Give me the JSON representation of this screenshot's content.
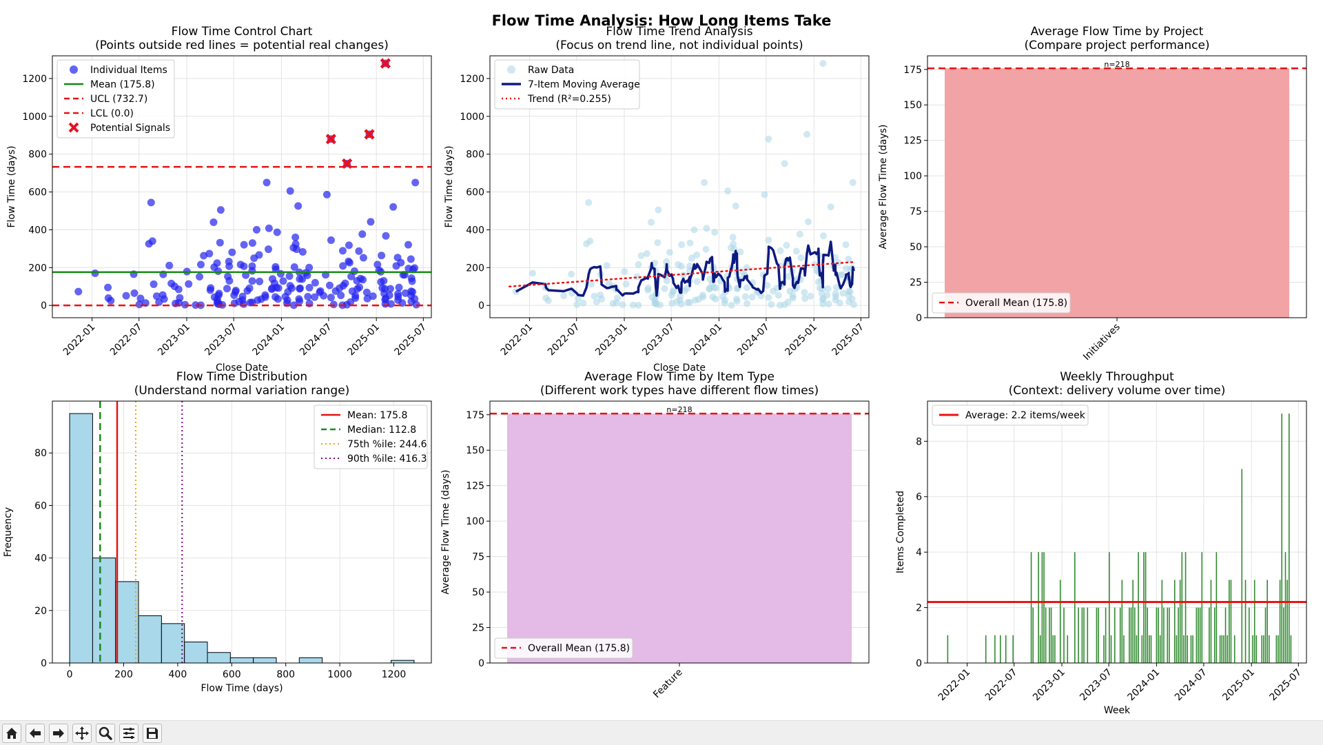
{
  "suptitle": "Flow Time Analysis: How Long Items Take",
  "colors": {
    "scatter": "#2222ee",
    "signal": "#e8101e",
    "mean_line": "#138a13",
    "limit_line": "#e81010",
    "moving_avg": "#0d1a80",
    "raw": "#a9d6e6",
    "trend": "#ee1111",
    "project_bar": "#f2a3a6",
    "type_bar": "#e3bbe6",
    "hist_bar": "#a8d8ea",
    "median": "#1a8a1a",
    "p75": "#f0a400",
    "p90": "#800080",
    "throughput_bar": "#2f8a2f",
    "average": "#ee1111"
  },
  "toolbar": {
    "icons": [
      "home-icon",
      "back-arrow-icon",
      "forward-arrow-icon",
      "pan-icon",
      "zoom-icon",
      "configure-icon",
      "save-icon"
    ]
  },
  "chart_data": [
    {
      "id": "control",
      "type": "scatter",
      "title_line1": "Flow Time Control Chart",
      "title_line2": "(Points outside red lines = potential real changes)",
      "xlabel": "Close Date",
      "ylabel": "Flow Time (days)",
      "x_ticks": [
        "2022-01",
        "2022-07",
        "2023-01",
        "2023-07",
        "2024-01",
        "2024-07",
        "2025-01",
        "2025-07"
      ],
      "y_ticks": [
        0,
        200,
        400,
        600,
        800,
        1000,
        1200
      ],
      "xlim": [
        "2021-08",
        "2025-08"
      ],
      "ylim": [
        -65,
        1320
      ],
      "legend": [
        "Individual Items",
        "Mean (175.8)",
        "UCL (732.7)",
        "LCL (0.0)",
        "Potential Signals"
      ],
      "mean": 175.8,
      "ucl": 732.7,
      "lcl": 0.0,
      "signals": [
        {
          "x": "2024-07-10",
          "y": 880
        },
        {
          "x": "2024-09-10",
          "y": 750
        },
        {
          "x": "2024-12-05",
          "y": 905
        },
        {
          "x": "2025-02-05",
          "y": 1280
        }
      ]
    },
    {
      "id": "trend",
      "type": "line",
      "title_line1": "Flow Time Trend Analysis",
      "title_line2": "(Focus on trend line, not individual points)",
      "xlabel": "Close Date",
      "ylabel": "Flow Time (days)",
      "x_ticks": [
        "2022-01",
        "2022-07",
        "2023-01",
        "2023-07",
        "2024-01",
        "2024-07",
        "2025-01",
        "2025-07"
      ],
      "y_ticks": [
        0,
        200,
        400,
        600,
        800,
        1000,
        1200
      ],
      "xlim": [
        "2021-08",
        "2025-08"
      ],
      "ylim": [
        -65,
        1320
      ],
      "legend": [
        "Raw Data",
        "7-Item Moving Average",
        "Trend (R²=0.255)"
      ],
      "trend_line": {
        "x": [
          "2021-10-15",
          "2025-06-10"
        ],
        "y": [
          100,
          230
        ]
      }
    },
    {
      "id": "project",
      "type": "bar",
      "title_line1": "Average Flow Time by Project",
      "title_line2": "(Compare project performance)",
      "ylabel": "Average Flow Time (days)",
      "categories": [
        "Initiatives"
      ],
      "values": [
        175.8
      ],
      "bar_labels": [
        "n=218"
      ],
      "y_ticks": [
        0,
        25,
        50,
        75,
        100,
        125,
        150,
        175
      ],
      "ylim": [
        0,
        184.6
      ],
      "legend": [
        "Overall Mean (175.8)"
      ],
      "overall_mean": 175.8
    },
    {
      "id": "histogram",
      "type": "bar",
      "title_line1": "Flow Time Distribution",
      "title_line2": "(Understand normal variation range)",
      "xlabel": "Flow Time (days)",
      "ylabel": "Frequency",
      "bin_edges": [
        0,
        85,
        170,
        255,
        340,
        425,
        510,
        595,
        680,
        765,
        850,
        935,
        1020,
        1105,
        1190,
        1275
      ],
      "counts": [
        95,
        40,
        31,
        18,
        15,
        8,
        4,
        2,
        2,
        0,
        2,
        0,
        0,
        0,
        1
      ],
      "x_ticks": [
        0,
        200,
        400,
        600,
        800,
        1000,
        1200
      ],
      "y_ticks": [
        0,
        20,
        40,
        60,
        80
      ],
      "xlim": [
        -64,
        1339
      ],
      "ylim": [
        0,
        99.75
      ],
      "legend": [
        "Mean: 175.8",
        "Median: 112.8",
        "75th %ile: 244.6",
        "90th %ile: 416.3"
      ],
      "mean": 175.8,
      "median": 112.8,
      "p75": 244.6,
      "p90": 416.3
    },
    {
      "id": "itemtype",
      "type": "bar",
      "title_line1": "Average Flow Time by Item Type",
      "title_line2": "(Different work types have different flow times)",
      "ylabel": "Average Flow Time (days)",
      "categories": [
        "Feature"
      ],
      "values": [
        175.8
      ],
      "bar_labels": [
        "n=218"
      ],
      "y_ticks": [
        0,
        25,
        50,
        75,
        100,
        125,
        150,
        175
      ],
      "ylim": [
        0,
        184.6
      ],
      "legend": [
        "Overall Mean (175.8)"
      ],
      "overall_mean": 175.8
    },
    {
      "id": "throughput",
      "type": "bar",
      "title_line1": "Weekly Throughput",
      "title_line2": "(Context: delivery volume over time)",
      "xlabel": "Week",
      "ylabel": "Items Completed",
      "x_ticks": [
        "2022-01",
        "2022-07",
        "2023-01",
        "2023-07",
        "2024-01",
        "2024-07",
        "2025-01",
        "2025-07"
      ],
      "y_ticks": [
        0,
        2,
        4,
        6,
        8
      ],
      "xlim": [
        "2021-08",
        "2025-08"
      ],
      "ylim": [
        0,
        9.45
      ],
      "legend": [
        "Average: 2.2 items/week"
      ],
      "average": 2.2
    }
  ]
}
